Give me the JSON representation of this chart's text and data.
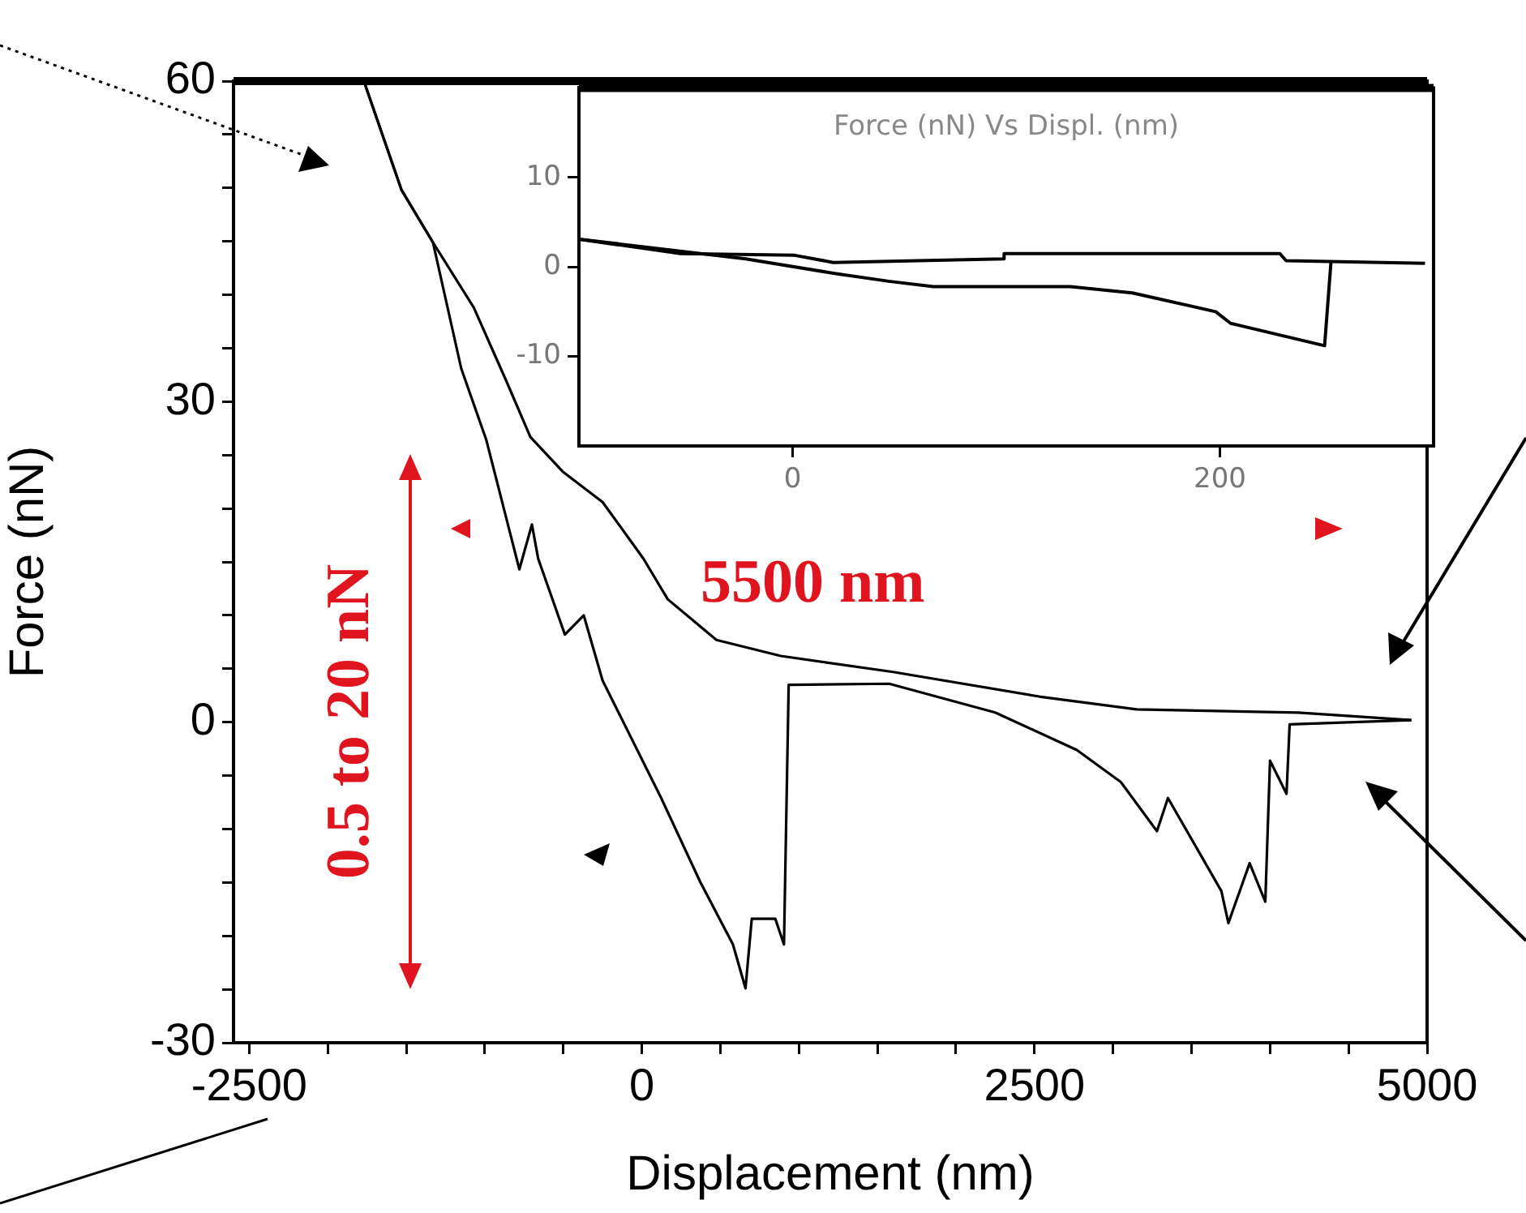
{
  "chart_data": [
    {
      "type": "line",
      "xlabel": "Displacement (nm)",
      "ylabel": "Force (nN)",
      "xlim": [
        -2600,
        5000
      ],
      "xticks": [
        -2500,
        {
          "value": -2000,
          "label": null
        },
        {
          "value": -1500,
          "label": null
        },
        {
          "value": -1000,
          "label": null
        },
        {
          "value": -500,
          "label": null
        },
        0,
        {
          "value": 500,
          "label": null
        },
        {
          "value": 1000,
          "label": null
        },
        {
          "value": 1500,
          "label": null
        },
        {
          "value": 2000,
          "label": null
        },
        2500,
        {
          "value": 3000,
          "label": null
        },
        {
          "value": 3500,
          "label": null
        },
        {
          "value": 4000,
          "label": null
        },
        {
          "value": 4500,
          "label": null
        },
        5000
      ],
      "ylim": [
        -30,
        60
      ],
      "yticks": [
        -30,
        {
          "value": -25,
          "label": null
        },
        {
          "value": -20,
          "label": null
        },
        {
          "value": -15,
          "label": null
        },
        {
          "value": -10,
          "label": null
        },
        {
          "value": -5,
          "label": null
        },
        0,
        {
          "value": 5,
          "label": null
        },
        {
          "value": 10,
          "label": null
        },
        {
          "value": 15,
          "label": null
        },
        {
          "value": 20,
          "label": null
        },
        {
          "value": 25,
          "label": null
        },
        30,
        {
          "value": 35,
          "label": null
        },
        {
          "value": 40,
          "label": null
        },
        {
          "value": 45,
          "label": null
        },
        {
          "value": 50,
          "label": null
        },
        {
          "value": 55,
          "label": null
        },
        60
      ],
      "grid": false,
      "legend": false,
      "marker": "none",
      "annotations": [
        "5500 nm",
        "0.5 to 20 nN"
      ],
      "series": [
        {
          "color": "#000000",
          "x": [
            -1770,
            -1530,
            -1330,
            -1070,
            -865,
            -710,
            -500,
            -250,
            10,
            165,
            475,
            885,
            1600,
            2530,
            3150,
            4180,
            4900
          ],
          "values": [
            60,
            49.8,
            44.9,
            38.8,
            32,
            26.7,
            23.4,
            20.6,
            15.3,
            11.5,
            7.7,
            6.2,
            4.7,
            2.4,
            1.2,
            0.9,
            0.2
          ]
        },
        {
          "color": "#000000",
          "x": [
            -1770,
            -1530,
            -1330,
            -1150,
            -990,
            -780,
            -700,
            -660,
            -490,
            -370,
            -250,
            120,
            370,
            580,
            660,
            700,
            850,
            905,
            935,
            1575,
            2250,
            2770,
            3050,
            3280,
            3350,
            3690,
            3735,
            3870,
            3970,
            4000,
            4105,
            4125,
            4900
          ],
          "values": [
            60,
            49.8,
            44.9,
            33.1,
            26.4,
            14.3,
            18.5,
            15.3,
            8.2,
            10,
            3.9,
            -7,
            -14.9,
            -20.8,
            -24.9,
            -18.4,
            -18.4,
            -20.8,
            3.5,
            3.6,
            0.9,
            -2.6,
            -5.6,
            -10.2,
            -7.1,
            -15.8,
            -18.8,
            -13.2,
            -16.8,
            -3.6,
            -6.7,
            -0.2,
            0.2
          ]
        }
      ]
    },
    {
      "type": "line",
      "title": "Force (nN) Vs Displ. (nm)",
      "xlim": [
        -100,
        300
      ],
      "xticks": [
        0,
        200
      ],
      "ylim": [
        -20,
        20
      ],
      "yticks": [
        -10,
        0,
        10
      ],
      "grid": false,
      "legend": false,
      "marker": "none",
      "series": [
        {
          "color": "#000000",
          "x": [
            -100,
            -53,
            1,
            19,
            99,
            99,
            228,
            231,
            296
          ],
          "values": [
            3.1,
            1.5,
            1.3,
            0.5,
            0.9,
            1.5,
            1.5,
            0.7,
            0.4
          ]
        },
        {
          "color": "#000000",
          "x": [
            -100,
            -22,
            19,
            45,
            66,
            130,
            159,
            198,
            205,
            249,
            252
          ],
          "values": [
            3.1,
            0.9,
            -0.7,
            -1.6,
            -2.2,
            -2.2,
            -2.9,
            -5,
            -6.3,
            -8.8,
            0.6
          ]
        }
      ]
    }
  ]
}
